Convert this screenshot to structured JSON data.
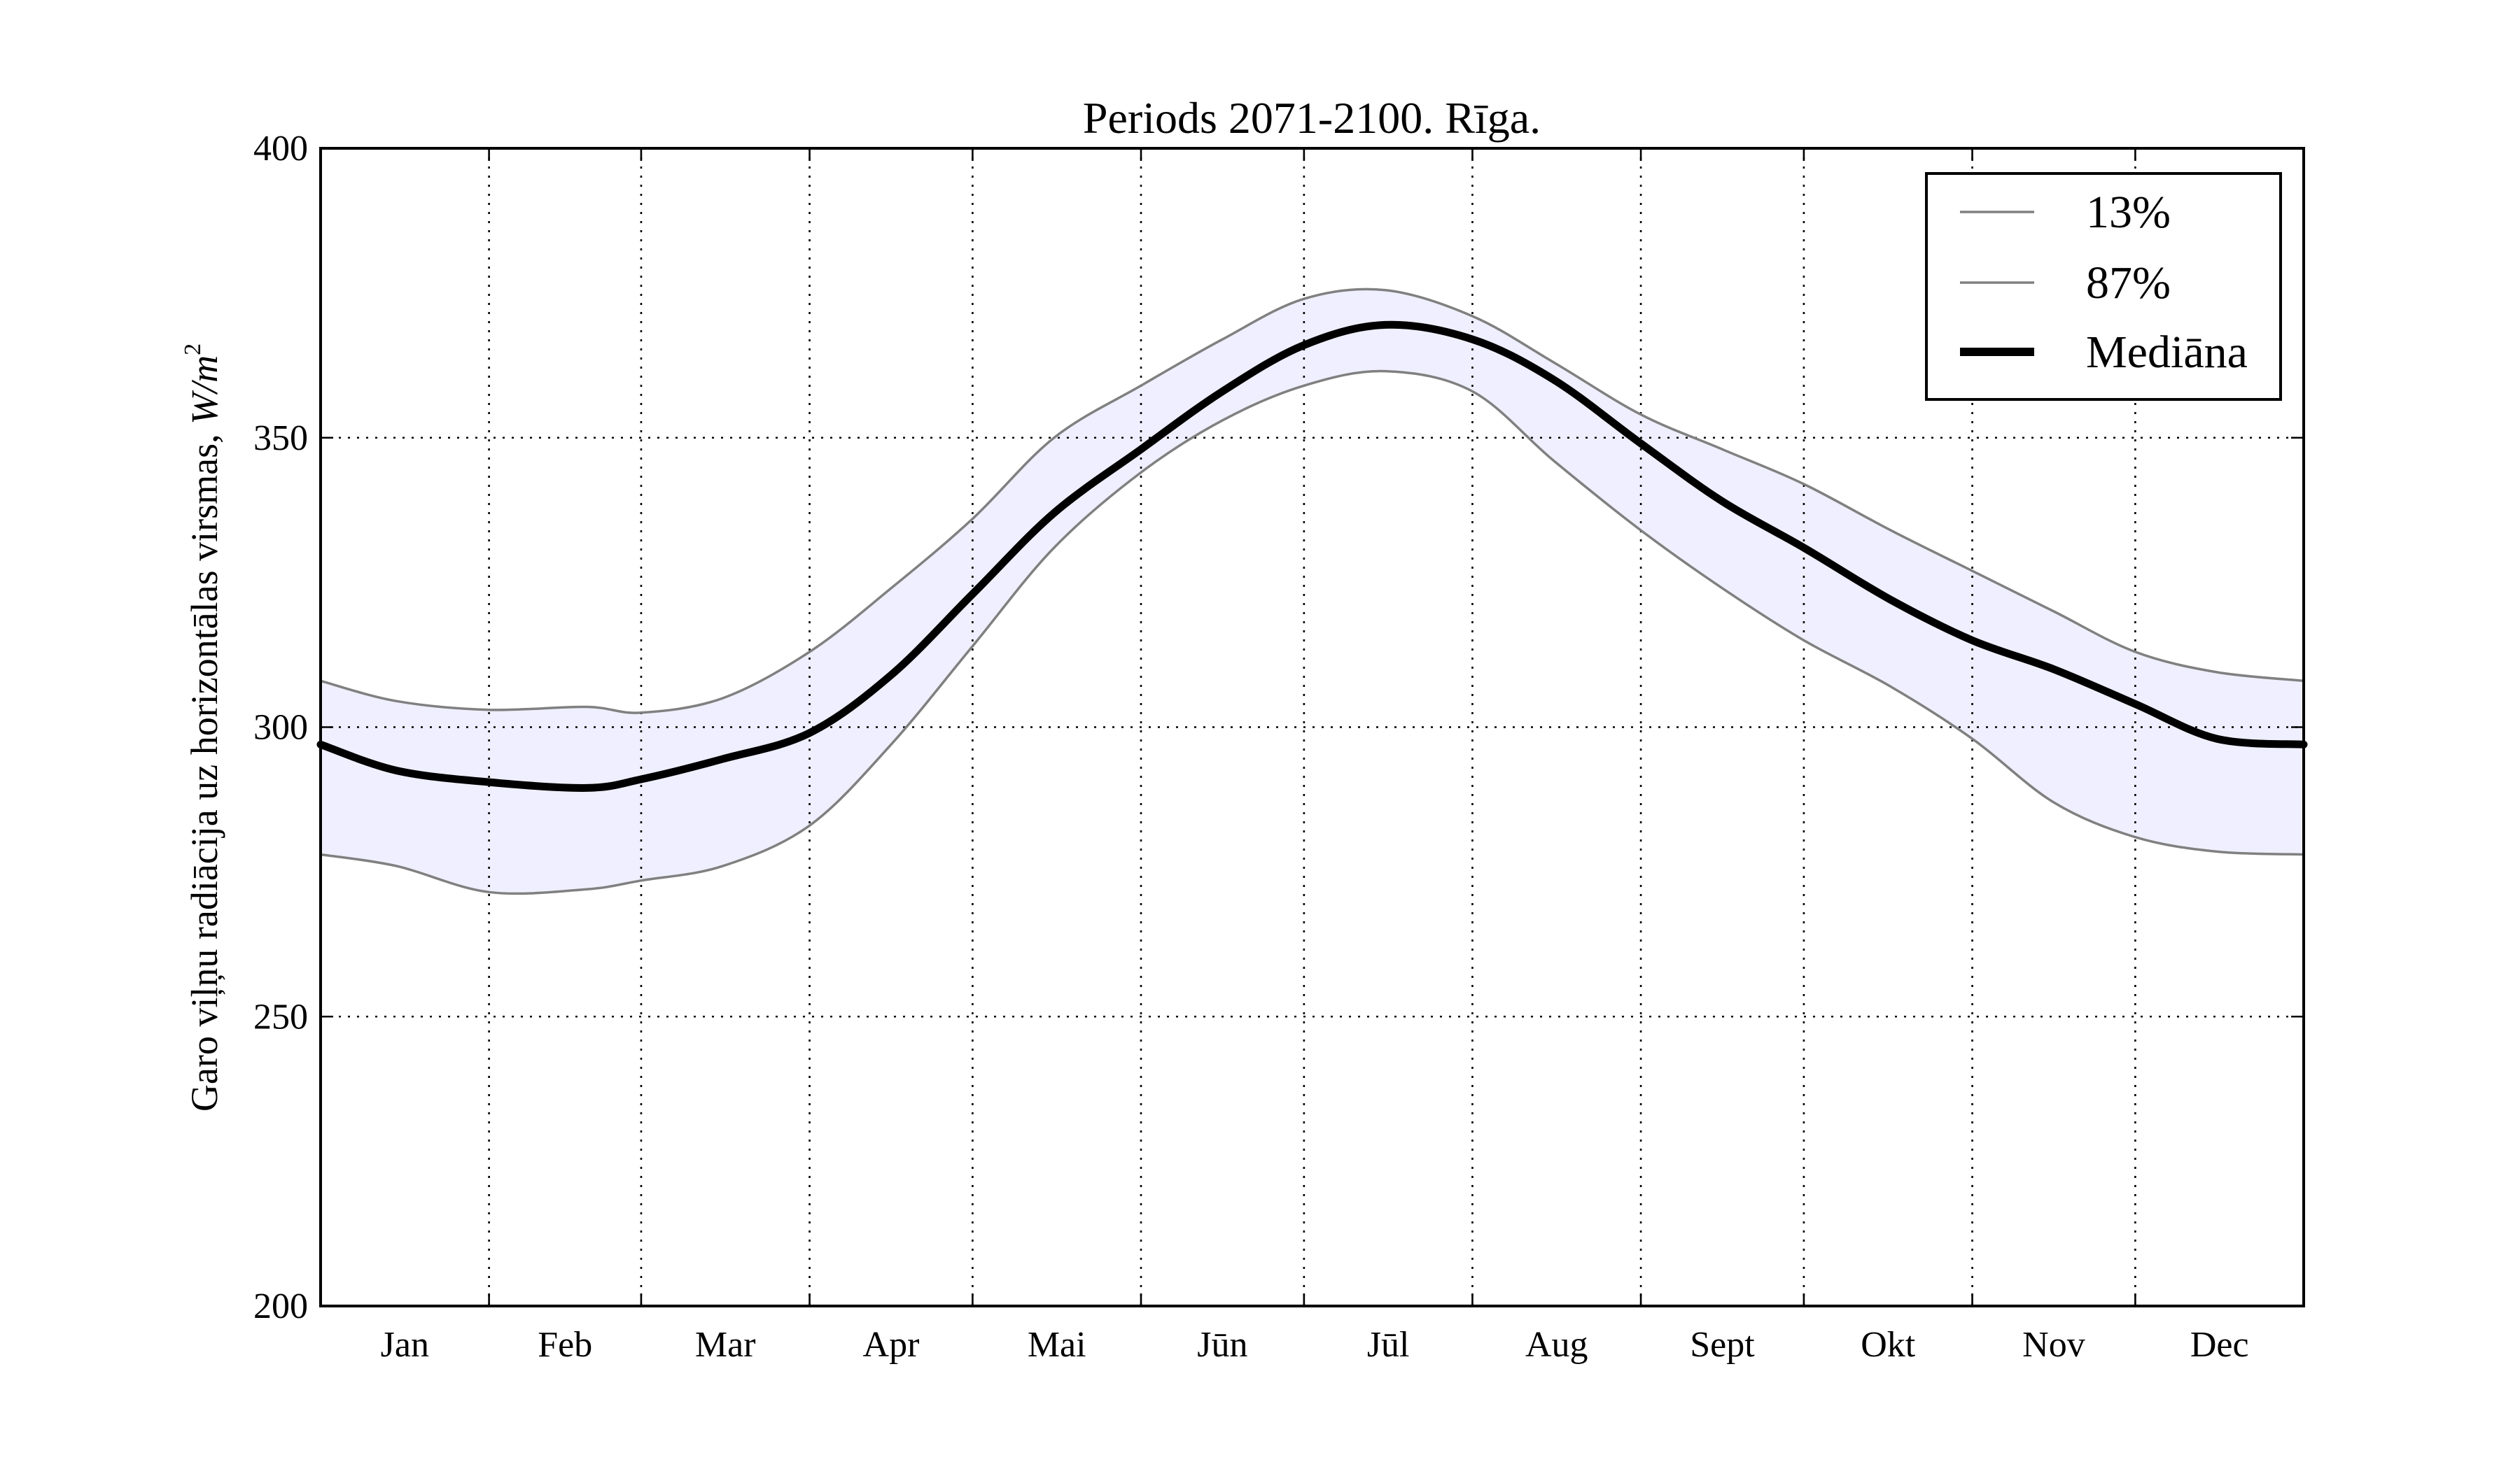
{
  "chart_data": {
    "type": "line",
    "title": "Periods 2071-2100. Rīga.",
    "ylabel_prefix": "Garo viļņu radiācija uz horizontālas virsmas, ",
    "ylabel_unit": "W/m",
    "ylabel_unit_exp": "2",
    "xlabel": "",
    "ylim": [
      200,
      400
    ],
    "yticks": [
      200,
      250,
      300,
      350,
      400
    ],
    "ytick_labels": [
      "200",
      "250",
      "300",
      "350",
      "400"
    ],
    "months": [
      "Jan",
      "Feb",
      "Mar",
      "Apr",
      "Mai",
      "Jūn",
      "Jūl",
      "Aug",
      "Sept",
      "Okt",
      "Nov",
      "Dec"
    ],
    "month_starts": [
      1,
      32,
      60,
      91,
      121,
      152,
      182,
      213,
      244,
      274,
      305,
      335,
      366
    ],
    "grid": true,
    "legend_position": "top-right",
    "band_fill": "#efefff",
    "series": [
      {
        "name": "13%",
        "color": "#808080",
        "style": "thin",
        "x": [
          1,
          15,
          32,
          50,
          60,
          75,
          91,
          106,
          121,
          136,
          152,
          167,
          182,
          197,
          213,
          228,
          244,
          259,
          274,
          290,
          305,
          320,
          335,
          350,
          366
        ],
        "y": [
          278,
          276,
          271.5,
          272,
          273.5,
          276,
          283,
          297,
          314,
          331,
          344,
          353,
          359,
          361.5,
          358,
          346,
          334,
          324,
          315,
          307,
          298,
          287,
          281,
          278.5,
          278
        ]
      },
      {
        "name": "87%",
        "color": "#808080",
        "style": "thin",
        "x": [
          1,
          15,
          32,
          50,
          60,
          75,
          91,
          106,
          121,
          136,
          152,
          167,
          182,
          197,
          213,
          228,
          244,
          259,
          274,
          290,
          305,
          320,
          335,
          350,
          366
        ],
        "y": [
          308,
          304.5,
          303,
          303.5,
          302.5,
          305,
          313,
          324,
          336,
          350,
          359,
          367,
          374,
          375.5,
          371,
          363,
          354,
          348,
          342,
          334,
          327,
          320,
          313,
          309.5,
          308
        ]
      },
      {
        "name": "Mediāna",
        "color": "#000000",
        "style": "thick",
        "x": [
          1,
          15,
          32,
          50,
          60,
          75,
          91,
          106,
          121,
          136,
          152,
          167,
          182,
          197,
          213,
          228,
          244,
          259,
          274,
          290,
          305,
          320,
          335,
          350,
          366
        ],
        "y": [
          297,
          292.5,
          290.5,
          289.5,
          291,
          294.5,
          299,
          309,
          323,
          337,
          348,
          358,
          366,
          369.5,
          367,
          360,
          349,
          339,
          331,
          322,
          315,
          310,
          304,
          298,
          297
        ]
      }
    ]
  }
}
